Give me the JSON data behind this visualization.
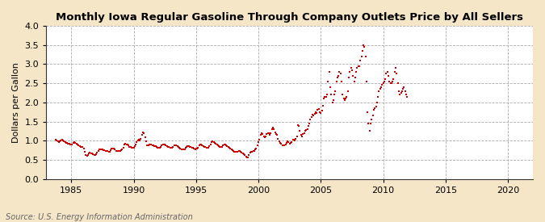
{
  "title": "Monthly Iowa Regular Gasoline Through Company Outlets Price by All Sellers",
  "ylabel": "Dollars per Gallon",
  "source": "Source: U.S. Energy Information Administration",
  "fig_background_color": "#f5e6c8",
  "plot_background_color": "#ffffff",
  "marker_color": "#cc0000",
  "xlim": [
    1983,
    2022
  ],
  "ylim": [
    0.0,
    4.0
  ],
  "xticks": [
    1985,
    1990,
    1995,
    2000,
    2005,
    2010,
    2015,
    2020
  ],
  "yticks": [
    0.0,
    0.5,
    1.0,
    1.5,
    2.0,
    2.5,
    3.0,
    3.5,
    4.0
  ],
  "data": [
    [
      1983.75,
      1.02
    ],
    [
      1983.83,
      1.01
    ],
    [
      1983.92,
      0.98
    ],
    [
      1984.0,
      0.97
    ],
    [
      1984.08,
      0.98
    ],
    [
      1984.17,
      1.01
    ],
    [
      1984.25,
      1.02
    ],
    [
      1984.33,
      1.0
    ],
    [
      1984.42,
      0.99
    ],
    [
      1984.5,
      0.96
    ],
    [
      1984.58,
      0.94
    ],
    [
      1984.67,
      0.94
    ],
    [
      1984.75,
      0.92
    ],
    [
      1984.83,
      0.92
    ],
    [
      1984.92,
      0.9
    ],
    [
      1985.0,
      0.89
    ],
    [
      1985.08,
      0.91
    ],
    [
      1985.17,
      0.95
    ],
    [
      1985.25,
      0.96
    ],
    [
      1985.33,
      0.94
    ],
    [
      1985.42,
      0.93
    ],
    [
      1985.5,
      0.9
    ],
    [
      1985.58,
      0.87
    ],
    [
      1985.67,
      0.86
    ],
    [
      1985.75,
      0.83
    ],
    [
      1985.83,
      0.84
    ],
    [
      1985.92,
      0.83
    ],
    [
      1986.0,
      0.79
    ],
    [
      1986.08,
      0.72
    ],
    [
      1986.17,
      0.62
    ],
    [
      1986.25,
      0.6
    ],
    [
      1986.33,
      0.63
    ],
    [
      1986.42,
      0.67
    ],
    [
      1986.5,
      0.69
    ],
    [
      1986.58,
      0.67
    ],
    [
      1986.67,
      0.66
    ],
    [
      1986.75,
      0.65
    ],
    [
      1986.83,
      0.63
    ],
    [
      1986.92,
      0.63
    ],
    [
      1987.0,
      0.65
    ],
    [
      1987.08,
      0.68
    ],
    [
      1987.17,
      0.74
    ],
    [
      1987.25,
      0.78
    ],
    [
      1987.33,
      0.78
    ],
    [
      1987.42,
      0.77
    ],
    [
      1987.5,
      0.78
    ],
    [
      1987.58,
      0.76
    ],
    [
      1987.67,
      0.75
    ],
    [
      1987.75,
      0.74
    ],
    [
      1987.83,
      0.74
    ],
    [
      1987.92,
      0.73
    ],
    [
      1988.0,
      0.71
    ],
    [
      1988.08,
      0.72
    ],
    [
      1988.17,
      0.75
    ],
    [
      1988.25,
      0.79
    ],
    [
      1988.33,
      0.8
    ],
    [
      1988.42,
      0.79
    ],
    [
      1988.5,
      0.77
    ],
    [
      1988.58,
      0.74
    ],
    [
      1988.67,
      0.73
    ],
    [
      1988.75,
      0.73
    ],
    [
      1988.83,
      0.73
    ],
    [
      1988.92,
      0.73
    ],
    [
      1989.0,
      0.76
    ],
    [
      1989.08,
      0.78
    ],
    [
      1989.17,
      0.82
    ],
    [
      1989.25,
      0.9
    ],
    [
      1989.33,
      0.92
    ],
    [
      1989.42,
      0.91
    ],
    [
      1989.5,
      0.89
    ],
    [
      1989.58,
      0.87
    ],
    [
      1989.67,
      0.84
    ],
    [
      1989.75,
      0.83
    ],
    [
      1989.83,
      0.82
    ],
    [
      1989.92,
      0.81
    ],
    [
      1990.0,
      0.82
    ],
    [
      1990.08,
      0.85
    ],
    [
      1990.17,
      0.91
    ],
    [
      1990.25,
      0.96
    ],
    [
      1990.33,
      1.0
    ],
    [
      1990.42,
      1.02
    ],
    [
      1990.5,
      1.0
    ],
    [
      1990.58,
      1.05
    ],
    [
      1990.67,
      1.15
    ],
    [
      1990.75,
      1.22
    ],
    [
      1990.83,
      1.19
    ],
    [
      1990.92,
      1.1
    ],
    [
      1991.0,
      0.98
    ],
    [
      1991.08,
      0.88
    ],
    [
      1991.17,
      0.87
    ],
    [
      1991.25,
      0.9
    ],
    [
      1991.33,
      0.91
    ],
    [
      1991.42,
      0.9
    ],
    [
      1991.5,
      0.88
    ],
    [
      1991.58,
      0.88
    ],
    [
      1991.67,
      0.86
    ],
    [
      1991.75,
      0.85
    ],
    [
      1991.83,
      0.84
    ],
    [
      1991.92,
      0.82
    ],
    [
      1992.0,
      0.81
    ],
    [
      1992.08,
      0.82
    ],
    [
      1992.17,
      0.84
    ],
    [
      1992.25,
      0.88
    ],
    [
      1992.33,
      0.9
    ],
    [
      1992.42,
      0.9
    ],
    [
      1992.5,
      0.89
    ],
    [
      1992.58,
      0.87
    ],
    [
      1992.67,
      0.85
    ],
    [
      1992.75,
      0.84
    ],
    [
      1992.83,
      0.83
    ],
    [
      1992.92,
      0.81
    ],
    [
      1993.0,
      0.81
    ],
    [
      1993.08,
      0.82
    ],
    [
      1993.17,
      0.84
    ],
    [
      1993.25,
      0.87
    ],
    [
      1993.33,
      0.88
    ],
    [
      1993.42,
      0.87
    ],
    [
      1993.5,
      0.86
    ],
    [
      1993.58,
      0.84
    ],
    [
      1993.67,
      0.82
    ],
    [
      1993.75,
      0.8
    ],
    [
      1993.83,
      0.78
    ],
    [
      1993.92,
      0.77
    ],
    [
      1994.0,
      0.77
    ],
    [
      1994.08,
      0.78
    ],
    [
      1994.17,
      0.81
    ],
    [
      1994.25,
      0.84
    ],
    [
      1994.33,
      0.85
    ],
    [
      1994.42,
      0.85
    ],
    [
      1994.5,
      0.84
    ],
    [
      1994.58,
      0.83
    ],
    [
      1994.67,
      0.82
    ],
    [
      1994.75,
      0.81
    ],
    [
      1994.83,
      0.8
    ],
    [
      1994.92,
      0.78
    ],
    [
      1995.0,
      0.79
    ],
    [
      1995.08,
      0.8
    ],
    [
      1995.17,
      0.82
    ],
    [
      1995.25,
      0.87
    ],
    [
      1995.33,
      0.9
    ],
    [
      1995.42,
      0.89
    ],
    [
      1995.5,
      0.88
    ],
    [
      1995.58,
      0.86
    ],
    [
      1995.67,
      0.84
    ],
    [
      1995.75,
      0.83
    ],
    [
      1995.83,
      0.82
    ],
    [
      1995.92,
      0.81
    ],
    [
      1996.0,
      0.82
    ],
    [
      1996.08,
      0.85
    ],
    [
      1996.17,
      0.91
    ],
    [
      1996.25,
      0.97
    ],
    [
      1996.33,
      0.98
    ],
    [
      1996.42,
      0.97
    ],
    [
      1996.5,
      0.95
    ],
    [
      1996.58,
      0.93
    ],
    [
      1996.67,
      0.9
    ],
    [
      1996.75,
      0.87
    ],
    [
      1996.83,
      0.85
    ],
    [
      1996.92,
      0.83
    ],
    [
      1997.0,
      0.83
    ],
    [
      1997.08,
      0.84
    ],
    [
      1997.17,
      0.88
    ],
    [
      1997.25,
      0.89
    ],
    [
      1997.33,
      0.89
    ],
    [
      1997.42,
      0.88
    ],
    [
      1997.5,
      0.86
    ],
    [
      1997.58,
      0.84
    ],
    [
      1997.67,
      0.81
    ],
    [
      1997.75,
      0.79
    ],
    [
      1997.83,
      0.77
    ],
    [
      1997.92,
      0.75
    ],
    [
      1998.0,
      0.73
    ],
    [
      1998.08,
      0.71
    ],
    [
      1998.17,
      0.71
    ],
    [
      1998.25,
      0.72
    ],
    [
      1998.33,
      0.72
    ],
    [
      1998.42,
      0.73
    ],
    [
      1998.5,
      0.73
    ],
    [
      1998.58,
      0.71
    ],
    [
      1998.67,
      0.68
    ],
    [
      1998.75,
      0.66
    ],
    [
      1998.83,
      0.64
    ],
    [
      1998.92,
      0.62
    ],
    [
      1999.0,
      0.59
    ],
    [
      1999.08,
      0.57
    ],
    [
      1999.17,
      0.57
    ],
    [
      1999.25,
      0.62
    ],
    [
      1999.33,
      0.68
    ],
    [
      1999.42,
      0.71
    ],
    [
      1999.5,
      0.72
    ],
    [
      1999.58,
      0.73
    ],
    [
      1999.67,
      0.74
    ],
    [
      1999.75,
      0.77
    ],
    [
      1999.83,
      0.79
    ],
    [
      1999.92,
      0.88
    ],
    [
      2000.0,
      0.97
    ],
    [
      2000.08,
      1.03
    ],
    [
      2000.17,
      1.15
    ],
    [
      2000.25,
      1.2
    ],
    [
      2000.33,
      1.18
    ],
    [
      2000.42,
      1.12
    ],
    [
      2000.5,
      1.09
    ],
    [
      2000.58,
      1.12
    ],
    [
      2000.67,
      1.17
    ],
    [
      2000.75,
      1.2
    ],
    [
      2000.83,
      1.2
    ],
    [
      2000.92,
      1.15
    ],
    [
      2001.0,
      1.2
    ],
    [
      2001.08,
      1.3
    ],
    [
      2001.17,
      1.35
    ],
    [
      2001.25,
      1.3
    ],
    [
      2001.33,
      1.22
    ],
    [
      2001.42,
      1.18
    ],
    [
      2001.5,
      1.15
    ],
    [
      2001.58,
      1.05
    ],
    [
      2001.67,
      0.99
    ],
    [
      2001.75,
      0.95
    ],
    [
      2001.83,
      0.92
    ],
    [
      2001.92,
      0.88
    ],
    [
      2002.0,
      0.88
    ],
    [
      2002.08,
      0.87
    ],
    [
      2002.17,
      0.9
    ],
    [
      2002.25,
      0.95
    ],
    [
      2002.33,
      0.98
    ],
    [
      2002.42,
      0.96
    ],
    [
      2002.5,
      0.93
    ],
    [
      2002.58,
      0.95
    ],
    [
      2002.67,
      0.97
    ],
    [
      2002.75,
      1.02
    ],
    [
      2002.83,
      1.02
    ],
    [
      2002.92,
      1.0
    ],
    [
      2003.0,
      1.05
    ],
    [
      2003.08,
      1.12
    ],
    [
      2003.17,
      1.4
    ],
    [
      2003.25,
      1.38
    ],
    [
      2003.33,
      1.25
    ],
    [
      2003.42,
      1.15
    ],
    [
      2003.5,
      1.12
    ],
    [
      2003.58,
      1.18
    ],
    [
      2003.67,
      1.2
    ],
    [
      2003.75,
      1.25
    ],
    [
      2003.83,
      1.28
    ],
    [
      2003.92,
      1.3
    ],
    [
      2004.0,
      1.38
    ],
    [
      2004.08,
      1.45
    ],
    [
      2004.17,
      1.55
    ],
    [
      2004.25,
      1.62
    ],
    [
      2004.33,
      1.68
    ],
    [
      2004.42,
      1.65
    ],
    [
      2004.5,
      1.7
    ],
    [
      2004.58,
      1.75
    ],
    [
      2004.67,
      1.72
    ],
    [
      2004.75,
      1.8
    ],
    [
      2004.83,
      1.82
    ],
    [
      2004.92,
      1.75
    ],
    [
      2005.0,
      1.72
    ],
    [
      2005.08,
      1.78
    ],
    [
      2005.17,
      1.92
    ],
    [
      2005.25,
      2.1
    ],
    [
      2005.33,
      2.15
    ],
    [
      2005.42,
      2.15
    ],
    [
      2005.5,
      2.2
    ],
    [
      2005.58,
      2.55
    ],
    [
      2005.67,
      2.8
    ],
    [
      2005.75,
      2.4
    ],
    [
      2005.83,
      2.2
    ],
    [
      2005.92,
      2.0
    ],
    [
      2006.0,
      2.05
    ],
    [
      2006.08,
      2.2
    ],
    [
      2006.17,
      2.3
    ],
    [
      2006.25,
      2.55
    ],
    [
      2006.33,
      2.65
    ],
    [
      2006.42,
      2.7
    ],
    [
      2006.5,
      2.8
    ],
    [
      2006.58,
      2.75
    ],
    [
      2006.67,
      2.55
    ],
    [
      2006.75,
      2.2
    ],
    [
      2006.83,
      2.1
    ],
    [
      2006.92,
      2.05
    ],
    [
      2007.0,
      2.1
    ],
    [
      2007.08,
      2.15
    ],
    [
      2007.17,
      2.3
    ],
    [
      2007.25,
      2.65
    ],
    [
      2007.33,
      2.8
    ],
    [
      2007.42,
      2.9
    ],
    [
      2007.5,
      2.85
    ],
    [
      2007.58,
      2.7
    ],
    [
      2007.67,
      2.55
    ],
    [
      2007.75,
      2.65
    ],
    [
      2007.83,
      2.8
    ],
    [
      2007.92,
      2.9
    ],
    [
      2008.0,
      2.95
    ],
    [
      2008.08,
      2.95
    ],
    [
      2008.17,
      3.1
    ],
    [
      2008.25,
      3.2
    ],
    [
      2008.33,
      3.35
    ],
    [
      2008.42,
      3.5
    ],
    [
      2008.5,
      3.45
    ],
    [
      2008.58,
      3.2
    ],
    [
      2008.67,
      2.55
    ],
    [
      2008.75,
      1.75
    ],
    [
      2008.83,
      1.45
    ],
    [
      2008.92,
      1.25
    ],
    [
      2009.0,
      1.45
    ],
    [
      2009.08,
      1.55
    ],
    [
      2009.17,
      1.65
    ],
    [
      2009.25,
      1.8
    ],
    [
      2009.33,
      1.85
    ],
    [
      2009.42,
      1.9
    ],
    [
      2009.5,
      2.0
    ],
    [
      2009.58,
      2.15
    ],
    [
      2009.67,
      2.3
    ],
    [
      2009.75,
      2.35
    ],
    [
      2009.83,
      2.4
    ],
    [
      2009.92,
      2.45
    ],
    [
      2010.0,
      2.5
    ],
    [
      2010.08,
      2.55
    ],
    [
      2010.17,
      2.6
    ],
    [
      2010.25,
      2.75
    ],
    [
      2010.33,
      2.8
    ],
    [
      2010.42,
      2.7
    ],
    [
      2010.5,
      2.55
    ],
    [
      2010.58,
      2.5
    ],
    [
      2010.67,
      2.5
    ],
    [
      2010.75,
      2.55
    ],
    [
      2010.83,
      2.6
    ],
    [
      2010.92,
      2.8
    ],
    [
      2011.0,
      2.9
    ],
    [
      2011.08,
      2.75
    ],
    [
      2011.17,
      2.5
    ],
    [
      2011.25,
      2.3
    ],
    [
      2011.33,
      2.2
    ],
    [
      2011.42,
      2.25
    ],
    [
      2011.5,
      2.3
    ],
    [
      2011.58,
      2.35
    ],
    [
      2011.67,
      2.4
    ],
    [
      2011.75,
      2.3
    ],
    [
      2011.83,
      2.2
    ],
    [
      2011.92,
      2.15
    ]
  ]
}
